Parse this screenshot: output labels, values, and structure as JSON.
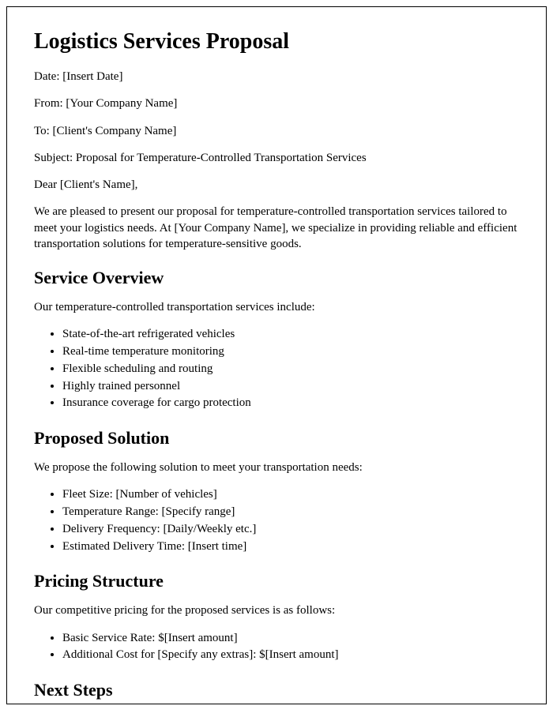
{
  "title": "Logistics Services Proposal",
  "meta": {
    "date": "Date: [Insert Date]",
    "from": "From: [Your Company Name]",
    "to": "To: [Client's Company Name]",
    "subject": "Subject: Proposal for Temperature-Controlled Transportation Services",
    "greeting": "Dear [Client's Name],"
  },
  "intro": "We are pleased to present our proposal for temperature-controlled transportation services tailored to meet your logistics needs. At [Your Company Name], we specialize in providing reliable and efficient transportation solutions for temperature-sensitive goods.",
  "sections": {
    "service_overview": {
      "heading": "Service Overview",
      "lead": "Our temperature-controlled transportation services include:",
      "items": [
        "State-of-the-art refrigerated vehicles",
        "Real-time temperature monitoring",
        "Flexible scheduling and routing",
        "Highly trained personnel",
        "Insurance coverage for cargo protection"
      ]
    },
    "proposed_solution": {
      "heading": "Proposed Solution",
      "lead": "We propose the following solution to meet your transportation needs:",
      "items": [
        "Fleet Size: [Number of vehicles]",
        "Temperature Range: [Specify range]",
        "Delivery Frequency: [Daily/Weekly etc.]",
        "Estimated Delivery Time: [Insert time]"
      ]
    },
    "pricing_structure": {
      "heading": "Pricing Structure",
      "lead": "Our competitive pricing for the proposed services is as follows:",
      "items": [
        "Basic Service Rate: $[Insert amount]",
        "Additional Cost for [Specify any extras]: $[Insert amount]"
      ]
    },
    "next_steps": {
      "heading": "Next Steps"
    }
  },
  "styling": {
    "font_family": "Times New Roman",
    "title_fontsize": 28,
    "heading_fontsize": 22,
    "body_fontsize": 15,
    "text_color": "#000000",
    "background_color": "#ffffff",
    "border_color": "#000000"
  }
}
